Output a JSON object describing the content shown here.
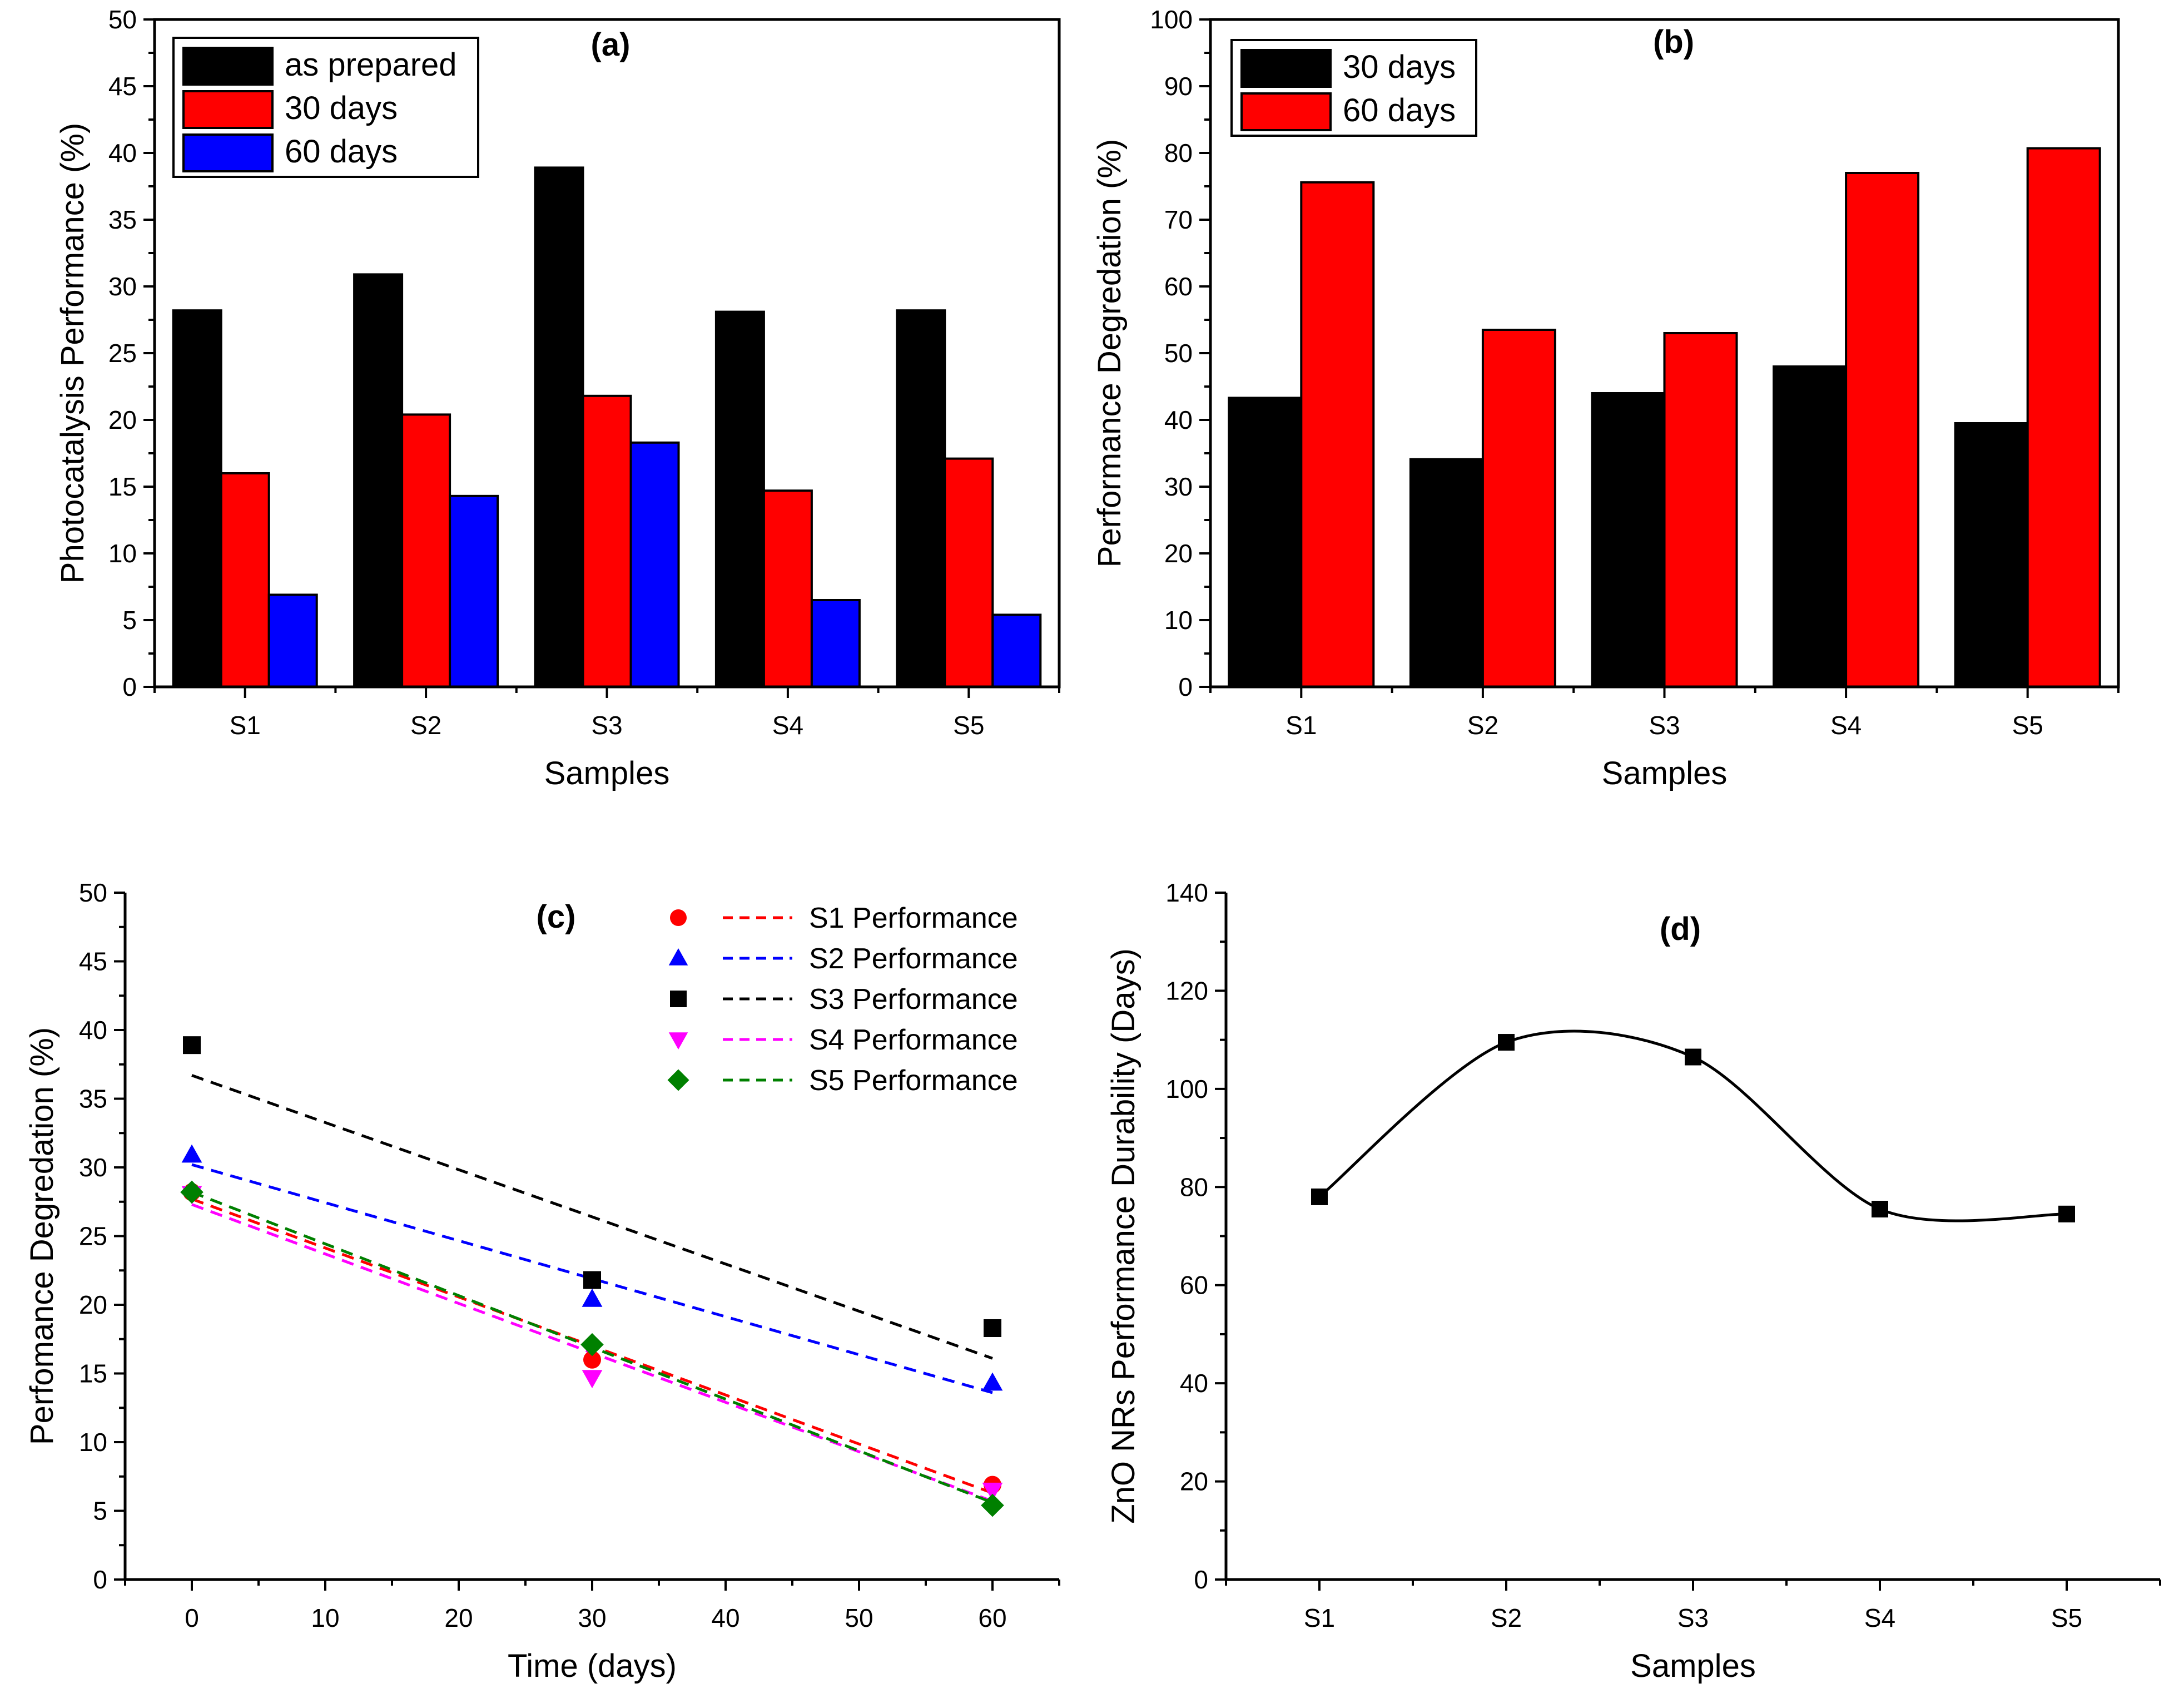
{
  "chart_data": [
    {
      "panel": "(a)",
      "type": "bar",
      "categories": [
        "S1",
        "S2",
        "S3",
        "S4",
        "S5"
      ],
      "series": [
        {
          "name": "as prepared",
          "color": "#000000",
          "values": [
            28.2,
            30.9,
            38.9,
            28.1,
            28.2
          ]
        },
        {
          "name": "30 days",
          "color": "#ff0000",
          "values": [
            16.0,
            20.4,
            21.8,
            14.7,
            17.1
          ]
        },
        {
          "name": "60 days",
          "color": "#0000ff",
          "values": [
            6.9,
            14.3,
            18.3,
            6.5,
            5.4
          ]
        }
      ],
      "xlabel": "Samples",
      "ylabel": "Photocatalysis Performance (%)",
      "ylim": [
        0,
        50
      ],
      "yticks": [
        0,
        5,
        10,
        15,
        20,
        25,
        30,
        35,
        40,
        45,
        50
      ],
      "legend_position": "top-left"
    },
    {
      "panel": "(b)",
      "type": "bar",
      "categories": [
        "S1",
        "S2",
        "S3",
        "S4",
        "S5"
      ],
      "series": [
        {
          "name": "30 days",
          "color": "#000000",
          "values": [
            43.3,
            34.1,
            44.0,
            48.0,
            39.5
          ]
        },
        {
          "name": "60 days",
          "color": "#ff0000",
          "values": [
            75.6,
            53.5,
            53.0,
            77.0,
            80.7
          ]
        }
      ],
      "xlabel": "Samples",
      "ylabel": "Performance Degredation (%)",
      "ylim": [
        0,
        100
      ],
      "yticks": [
        0,
        10,
        20,
        30,
        40,
        50,
        60,
        70,
        80,
        90,
        100
      ],
      "legend_position": "top-left"
    },
    {
      "panel": "(c)",
      "type": "scatter",
      "x": [
        0,
        30,
        60
      ],
      "series": [
        {
          "name": "S1 Performance",
          "marker": "circle",
          "color": "#ff0000",
          "values": [
            28.2,
            16.0,
            6.9
          ],
          "fit": [
            27.7,
            6.3
          ]
        },
        {
          "name": "S2 Performance",
          "marker": "triangle-up",
          "color": "#0000ff",
          "values": [
            30.9,
            20.4,
            14.3
          ],
          "fit": [
            30.2,
            13.6
          ]
        },
        {
          "name": "S3 Performance",
          "marker": "square",
          "color": "#000000",
          "values": [
            38.9,
            21.8,
            18.3
          ],
          "fit": [
            36.7,
            16.1
          ]
        },
        {
          "name": "S4 Performance",
          "marker": "triangle-down",
          "color": "#ff00ff",
          "values": [
            28.1,
            14.7,
            6.5
          ],
          "fit": [
            27.3,
            5.7
          ]
        },
        {
          "name": "S5 Performance",
          "marker": "diamond",
          "color": "#008000",
          "values": [
            28.2,
            17.1,
            5.4
          ],
          "fit": [
            28.2,
            5.6
          ]
        }
      ],
      "xlabel": "Time (days)",
      "ylabel": "Perfomance Degredation (%)",
      "xlim": [
        -5,
        65
      ],
      "ylim": [
        0,
        50
      ],
      "xticks": [
        0,
        10,
        20,
        30,
        40,
        50,
        60
      ],
      "yticks": [
        0,
        5,
        10,
        15,
        20,
        25,
        30,
        35,
        40,
        45,
        50
      ],
      "legend_position": "top-right"
    },
    {
      "panel": "(d)",
      "type": "line",
      "categories": [
        "S1",
        "S2",
        "S3",
        "S4",
        "S5"
      ],
      "series": [
        {
          "name": "ZnO NRs Performance Durability",
          "marker": "square",
          "color": "#000000",
          "values": [
            78,
            109.5,
            106.5,
            75.5,
            74.5
          ]
        }
      ],
      "xlabel": "Samples",
      "ylabel": "ZnO NRs Performance Durability (Days)",
      "ylim": [
        0,
        140
      ],
      "yticks": [
        0,
        20,
        40,
        60,
        80,
        100,
        120,
        140
      ]
    }
  ]
}
